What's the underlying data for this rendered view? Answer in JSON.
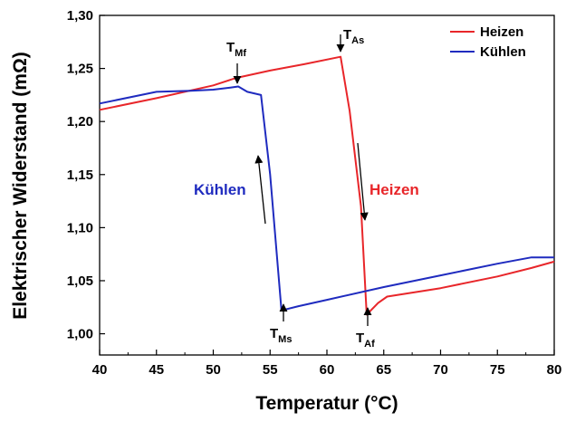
{
  "chart_data": {
    "type": "line",
    "xlabel": "Temperatur (°C)",
    "ylabel": "Elektrischer Widerstand (mΩ)",
    "xlim": [
      40,
      80
    ],
    "ylim": [
      0.98,
      1.3
    ],
    "x_ticks": [
      "40",
      "45",
      "50",
      "55",
      "60",
      "65",
      "70",
      "75",
      "80"
    ],
    "y_ticks": [
      "1,00",
      "1,05",
      "1,10",
      "1,15",
      "1,20",
      "1,25",
      "1,30"
    ],
    "grid": false,
    "legend_position": "top-right",
    "series": [
      {
        "name": "Heizen",
        "color": "#e8262a",
        "points": [
          [
            40,
            1.211
          ],
          [
            45,
            1.222
          ],
          [
            50,
            1.234
          ],
          [
            52,
            1.241
          ],
          [
            55,
            1.248
          ],
          [
            58,
            1.254
          ],
          [
            61.2,
            1.261
          ],
          [
            62.0,
            1.21
          ],
          [
            63.0,
            1.12
          ],
          [
            63.5,
            1.018
          ],
          [
            64.5,
            1.029
          ],
          [
            65.3,
            1.035
          ],
          [
            70,
            1.043
          ],
          [
            75,
            1.054
          ],
          [
            78,
            1.062
          ],
          [
            80,
            1.068
          ]
        ]
      },
      {
        "name": "Kühlen",
        "color": "#1f2bbf",
        "points": [
          [
            40,
            1.217
          ],
          [
            45,
            1.228
          ],
          [
            48,
            1.229
          ],
          [
            50,
            1.23
          ],
          [
            51.5,
            1.232
          ],
          [
            52.2,
            1.233
          ],
          [
            53,
            1.228
          ],
          [
            54.2,
            1.225
          ],
          [
            55.0,
            1.15
          ],
          [
            56.0,
            1.022
          ],
          [
            57.5,
            1.026
          ],
          [
            60,
            1.032
          ],
          [
            65,
            1.044
          ],
          [
            70,
            1.055
          ],
          [
            75,
            1.066
          ],
          [
            78,
            1.072
          ],
          [
            80,
            1.072
          ]
        ]
      }
    ],
    "annotations": {
      "heizen": {
        "text": "Heizen",
        "color": "#e8262a"
      },
      "kuehlen": {
        "text": "Kühlen",
        "color": "#1f2bbf"
      },
      "t_mf": {
        "main": "T",
        "sub": "Mf"
      },
      "t_as": {
        "main": "T",
        "sub": "As"
      },
      "t_ms": {
        "main": "T",
        "sub": "Ms"
      },
      "t_af": {
        "main": "T",
        "sub": "Af"
      }
    }
  }
}
